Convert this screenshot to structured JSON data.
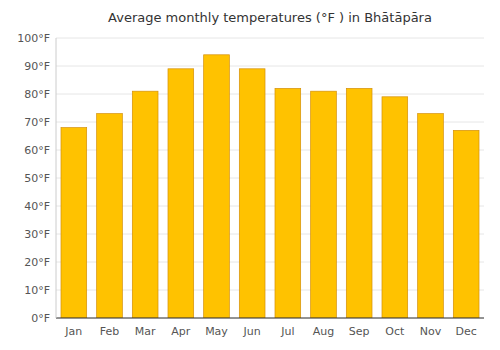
{
  "chart_data": {
    "type": "bar",
    "title": "Average monthly temperatures (°F ) in Bhātāpāra",
    "categories": [
      "Jan",
      "Feb",
      "Mar",
      "Apr",
      "May",
      "Jun",
      "Jul",
      "Aug",
      "Sep",
      "Oct",
      "Nov",
      "Dec"
    ],
    "values": [
      68,
      73,
      81,
      89,
      94,
      89,
      82,
      81,
      82,
      79,
      73,
      67
    ],
    "color": "#FFC200",
    "ylim": [
      0,
      100
    ],
    "yticks": [
      {
        "value": 0,
        "label": "0°F"
      },
      {
        "value": 10,
        "label": "10°F"
      },
      {
        "value": 20,
        "label": "20°F"
      },
      {
        "value": 30,
        "label": "30°F"
      },
      {
        "value": 40,
        "label": "40°F"
      },
      {
        "value": 50,
        "label": "50°F"
      },
      {
        "value": 60,
        "label": "60°F"
      },
      {
        "value": 70,
        "label": "70°F"
      },
      {
        "value": 80,
        "label": "80°F"
      },
      {
        "value": 90,
        "label": "90°F"
      },
      {
        "value": 100,
        "label": "100°F"
      }
    ],
    "grid": true
  }
}
